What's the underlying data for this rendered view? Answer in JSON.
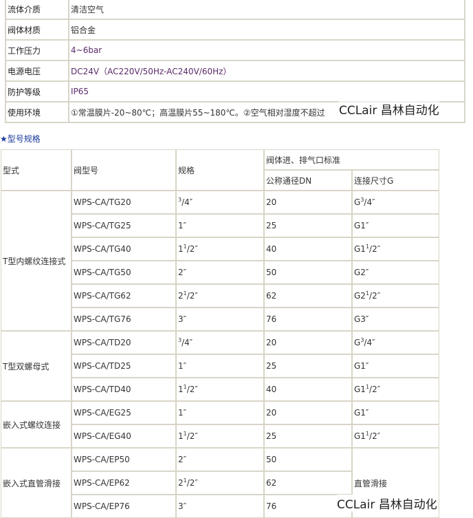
{
  "properties": [
    {
      "label": "流体介质",
      "value": "清洁空气"
    },
    {
      "label": "阀体材质",
      "value": "铝合金"
    },
    {
      "label": "工作压力",
      "value": "4~6bar"
    },
    {
      "label": "电源电压",
      "value": "DC24V（AC220V/50Hz-AC240V/60Hz）"
    },
    {
      "label": "防护等级",
      "value": "IP65"
    },
    {
      "label": "使用环境",
      "value": "①常温膜片-20~80℃；高温膜片55~180℃。②空气相对湿度不超过"
    }
  ],
  "heading": "★型号规格",
  "spec_table": {
    "headers": {
      "type": "型式",
      "model": "阀型号",
      "spec": "规格",
      "group": "阀体进、排气口标准",
      "dn": "公称通径DN",
      "g": "连接尺寸G"
    },
    "groups": [
      {
        "type": "T型内螺纹连接式",
        "rows": [
          {
            "model": "WPS-CA/TG20",
            "spec": {
              "pre": "",
              "sup": "3",
              "post": "/4″"
            },
            "dn": "20",
            "g": {
              "pre": "G",
              "sup": "3",
              "post": "/4″"
            }
          },
          {
            "model": "WPS-CA/TG25",
            "spec": {
              "pre": "1″",
              "sup": "",
              "post": ""
            },
            "dn": "25",
            "g": {
              "pre": "G1″",
              "sup": "",
              "post": ""
            }
          },
          {
            "model": "WPS-CA/TG40",
            "spec": {
              "pre": "1",
              "sup": "1",
              "post": "/2″"
            },
            "dn": "40",
            "g": {
              "pre": "G1",
              "sup": "1",
              "post": "/2″"
            }
          },
          {
            "model": "WPS-CA/TG50",
            "spec": {
              "pre": "2″",
              "sup": "",
              "post": ""
            },
            "dn": "50",
            "g": {
              "pre": "G2″",
              "sup": "",
              "post": ""
            }
          },
          {
            "model": "WPS-CA/TG62",
            "spec": {
              "pre": "2",
              "sup": "1",
              "post": "/2″"
            },
            "dn": "62",
            "g": {
              "pre": "G2",
              "sup": "1",
              "post": "/2″"
            }
          },
          {
            "model": "WPS-CA/TG76",
            "spec": {
              "pre": "3″",
              "sup": "",
              "post": ""
            },
            "dn": "76",
            "g": {
              "pre": "G3″",
              "sup": "",
              "post": ""
            }
          }
        ]
      },
      {
        "type": "T型双螺母式",
        "rows": [
          {
            "model": "WPS-CA/TD20",
            "spec": {
              "pre": "",
              "sup": "3",
              "post": "/4″"
            },
            "dn": "20",
            "g": {
              "pre": "G",
              "sup": "3",
              "post": "/4″"
            }
          },
          {
            "model": "WPS-CA/TD25",
            "spec": {
              "pre": "1″",
              "sup": "",
              "post": ""
            },
            "dn": "25",
            "g": {
              "pre": "G1″",
              "sup": "",
              "post": ""
            }
          },
          {
            "model": "WPS-CA/TD40",
            "spec": {
              "pre": "1",
              "sup": "1",
              "post": "/2″"
            },
            "dn": "40",
            "g": {
              "pre": "G1",
              "sup": "1",
              "post": "/2″"
            }
          }
        ]
      },
      {
        "type": "嵌入式螺纹连接",
        "rows": [
          {
            "model": "WPS-CA/EG25",
            "spec": {
              "pre": "1″",
              "sup": "",
              "post": ""
            },
            "dn": "20",
            "g": {
              "pre": "G1″",
              "sup": "",
              "post": ""
            }
          },
          {
            "model": "WPS-CA/EG40",
            "spec": {
              "pre": "1",
              "sup": "1",
              "post": "/2″"
            },
            "dn": "25",
            "g": {
              "pre": "G1",
              "sup": "1",
              "post": "/2″"
            }
          }
        ]
      },
      {
        "type": "嵌入式直管滑接",
        "g_merged": "直管滑接",
        "rows": [
          {
            "model": "WPS-CA/EP50",
            "spec": {
              "pre": "2″",
              "sup": "",
              "post": ""
            },
            "dn": "50"
          },
          {
            "model": "WPS-CA/EP62",
            "spec": {
              "pre": "2",
              "sup": "1",
              "post": "/2″"
            },
            "dn": "62"
          },
          {
            "model": "WPS-CA/EP76",
            "spec": {
              "pre": "3″",
              "sup": "",
              "post": ""
            },
            "dn": "76"
          }
        ]
      }
    ]
  },
  "watermark": "CCLair 昌林自动化"
}
